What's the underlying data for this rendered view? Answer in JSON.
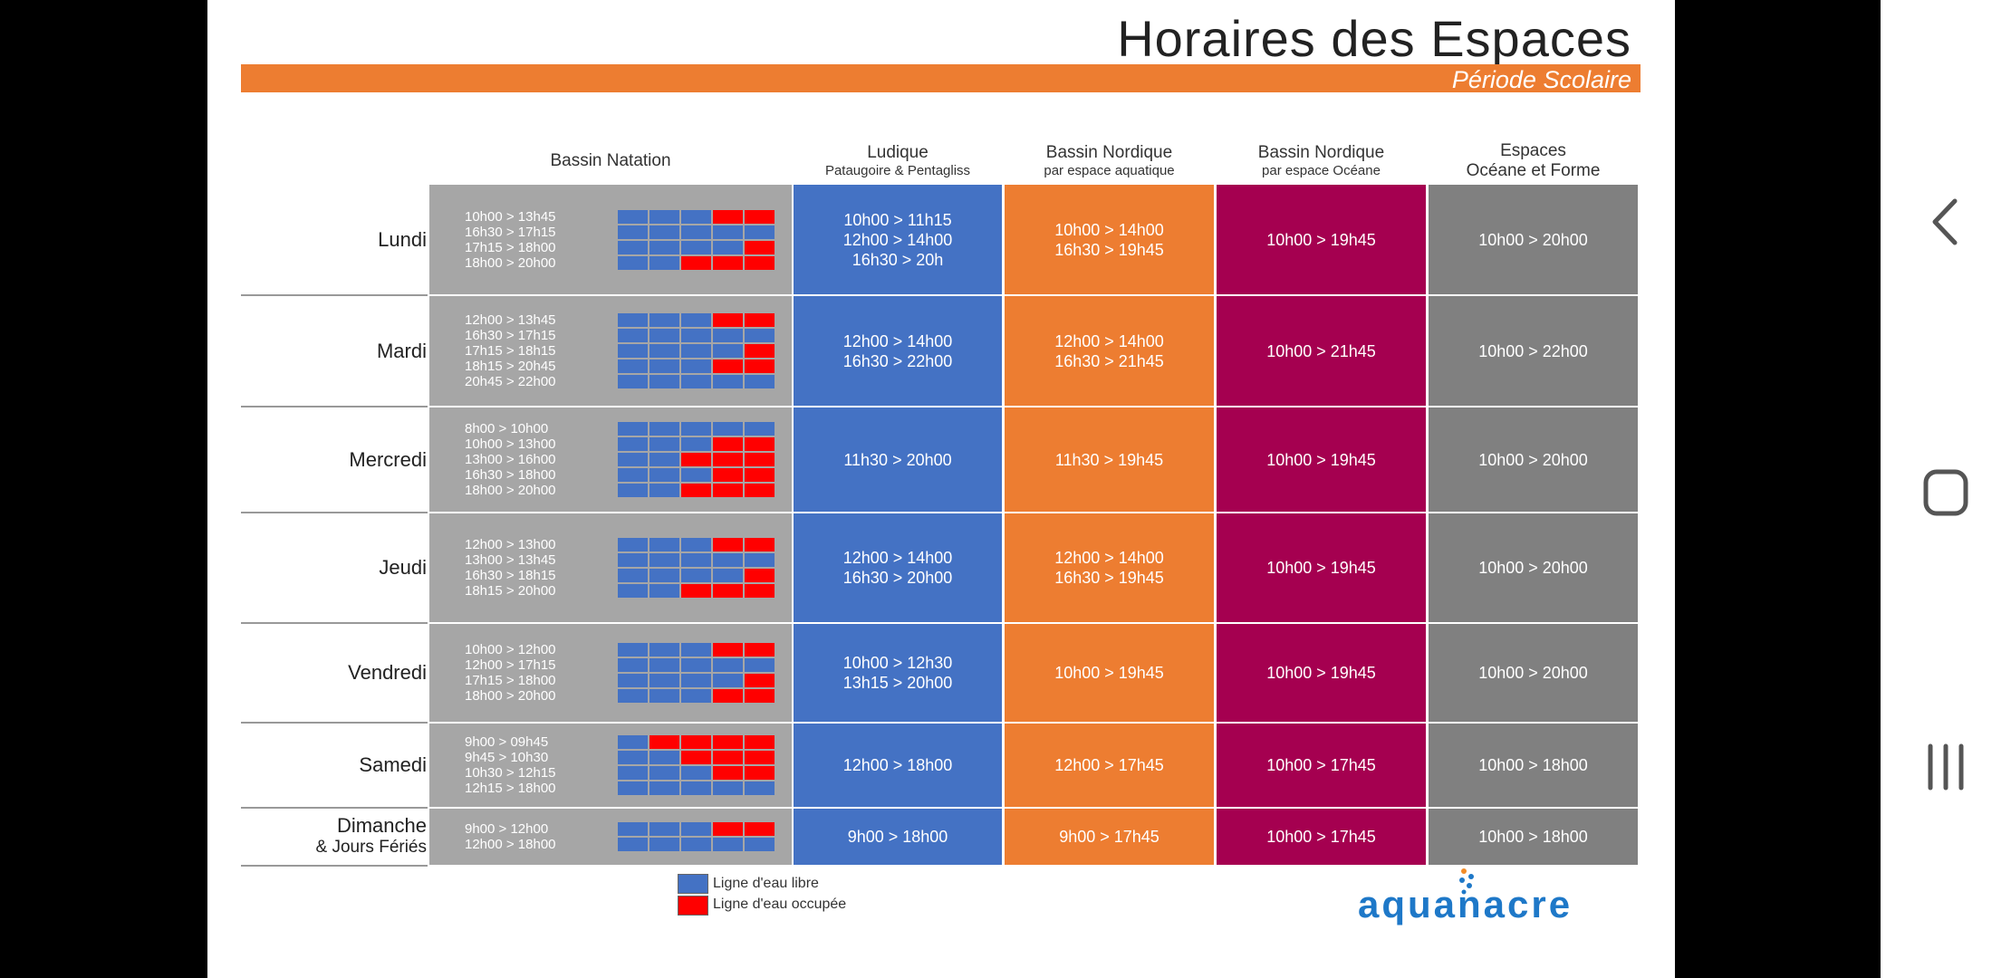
{
  "page": {
    "title": "Horaires des Espaces",
    "subtitle": "Période Scolaire"
  },
  "columns": {
    "natation": {
      "title": "Bassin Natation"
    },
    "ludique": {
      "title": "Ludique",
      "sub": "Pataugoire & Pentagliss"
    },
    "nordique1": {
      "title": "Bassin Nordique",
      "sub": "par espace aquatique"
    },
    "nordique2": {
      "title": "Bassin Nordique",
      "sub": "par espace Océane"
    },
    "espaces": {
      "title": "Espaces",
      "sub": "Océane et Forme"
    }
  },
  "days": [
    {
      "name": "Lundi",
      "name2": "",
      "natation": [
        "10h00 > 13h45",
        "16h30 > 17h15",
        "17h15 > 18h00",
        "18h00 > 20h00"
      ],
      "lanes": [
        "fffoo",
        "fffff",
        "ffffo",
        "ffooo"
      ],
      "ludique": [
        "10h00 > 11h15",
        "12h00 > 14h00",
        "16h30 > 20h"
      ],
      "nordique1": [
        "10h00 > 14h00",
        "16h30 > 19h45"
      ],
      "nordique2": [
        "10h00 > 19h45"
      ],
      "espaces": [
        "10h00 > 20h00"
      ]
    },
    {
      "name": "Mardi",
      "name2": "",
      "natation": [
        "12h00 > 13h45",
        "16h30 > 17h15",
        "17h15 > 18h15",
        "18h15 > 20h45",
        "20h45 > 22h00"
      ],
      "lanes": [
        "fffoo",
        "fffff",
        "ffffo",
        "fffoo",
        "fffff"
      ],
      "ludique": [
        "12h00 > 14h00",
        "16h30 > 22h00"
      ],
      "nordique1": [
        "12h00 > 14h00",
        "16h30 > 21h45"
      ],
      "nordique2": [
        "10h00 > 21h45"
      ],
      "espaces": [
        "10h00 > 22h00"
      ]
    },
    {
      "name": "Mercredi",
      "name2": "",
      "natation": [
        "8h00 > 10h00",
        "10h00 > 13h00",
        "13h00 > 16h00",
        "16h30 > 18h00",
        "18h00 > 20h00"
      ],
      "lanes": [
        "fffff",
        "fffoo",
        "ffooo",
        "fffoo",
        "ffooo"
      ],
      "ludique": [
        "11h30 > 20h00"
      ],
      "nordique1": [
        "11h30 > 19h45"
      ],
      "nordique2": [
        "10h00 > 19h45"
      ],
      "espaces": [
        "10h00 > 20h00"
      ]
    },
    {
      "name": "Jeudi",
      "name2": "",
      "natation": [
        "12h00 > 13h00",
        "13h00 > 13h45",
        "16h30 > 18h15",
        "18h15 > 20h00"
      ],
      "lanes": [
        "fffoo",
        "fffff",
        "ffffo",
        "ffooo"
      ],
      "ludique": [
        "12h00 > 14h00",
        "16h30 > 20h00"
      ],
      "nordique1": [
        "12h00 > 14h00",
        "16h30 > 19h45"
      ],
      "nordique2": [
        "10h00 > 19h45"
      ],
      "espaces": [
        "10h00 > 20h00"
      ]
    },
    {
      "name": "Vendredi",
      "name2": "",
      "natation": [
        "10h00 > 12h00",
        "12h00 > 17h15",
        "17h15 > 18h00",
        "18h00 > 20h00"
      ],
      "lanes": [
        "fffoo",
        "fffff",
        "ffffo",
        "fffoo"
      ],
      "ludique": [
        "10h00 > 12h30",
        "13h15 > 20h00"
      ],
      "nordique1": [
        "10h00 > 19h45"
      ],
      "nordique2": [
        "10h00 > 19h45"
      ],
      "espaces": [
        "10h00 > 20h00"
      ]
    },
    {
      "name": "Samedi",
      "name2": "",
      "natation": [
        "9h00 > 09h45",
        "9h45 > 10h30",
        "10h30 > 12h15",
        "12h15 > 18h00"
      ],
      "lanes": [
        "foooo",
        "ffooo",
        "fffoo",
        "fffff"
      ],
      "ludique": [
        "12h00 > 18h00"
      ],
      "nordique1": [
        "12h00 > 17h45"
      ],
      "nordique2": [
        "10h00 > 17h45"
      ],
      "espaces": [
        "10h00 > 18h00"
      ]
    },
    {
      "name": "Dimanche",
      "name2": "& Jours Fériés",
      "natation": [
        "9h00 > 12h00",
        "12h00 > 18h00"
      ],
      "lanes": [
        "fffoo",
        "fffff"
      ],
      "ludique": [
        "9h00 > 18h00"
      ],
      "nordique1": [
        "9h00 > 17h45"
      ],
      "nordique2": [
        "10h00 > 17h45"
      ],
      "espaces": [
        "10h00 > 18h00"
      ]
    }
  ],
  "legend": {
    "free": "Ligne d'eau libre",
    "occupied": "Ligne d'eau occupée"
  },
  "logo": "aquanacre",
  "colors": {
    "free": "#4472C4",
    "occupied": "#FF0000",
    "accent": "#ED7D31"
  },
  "navbar": {
    "back": "back-icon",
    "home": "home-icon",
    "recents": "recents-icon"
  }
}
